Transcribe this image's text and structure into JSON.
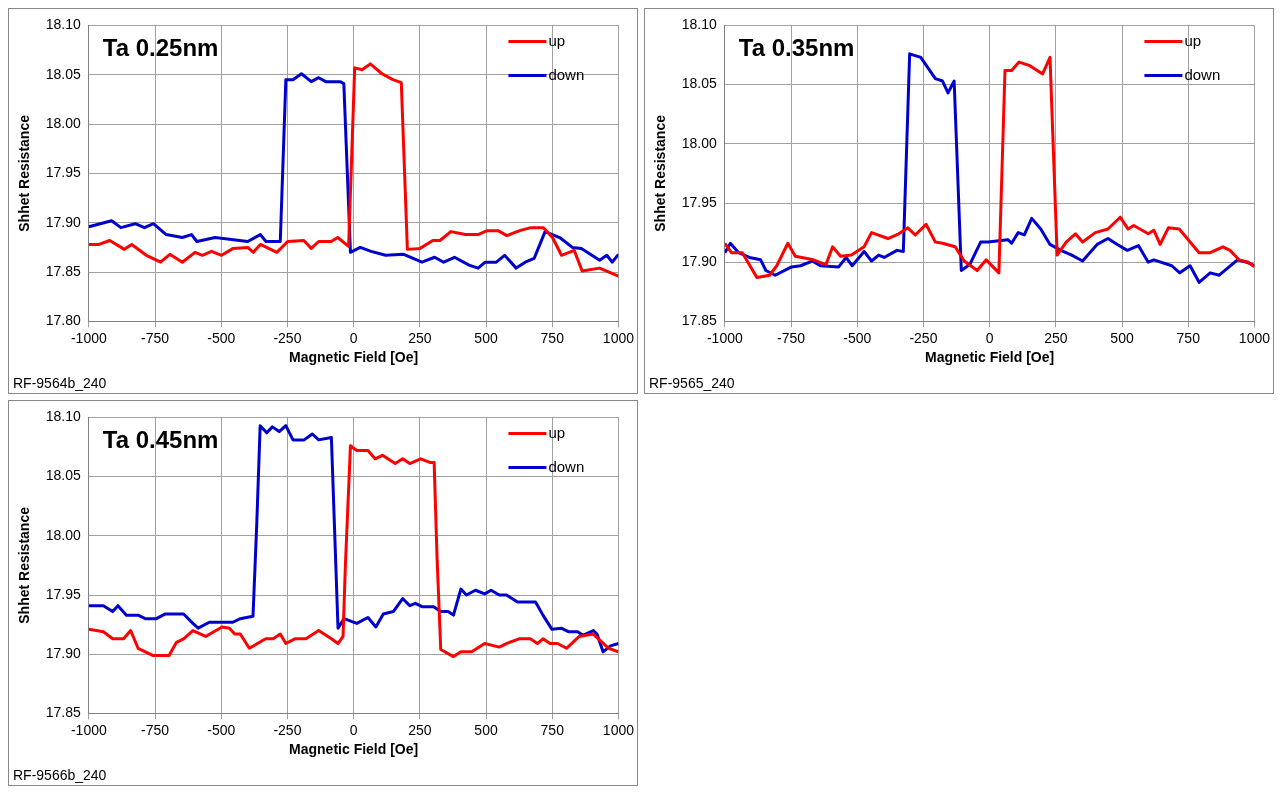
{
  "chart_data": [
    {
      "type": "line",
      "title": "Ta 0.25nm",
      "xlabel": "Magnetic Field [Oe]",
      "ylabel": "Shhet Resistance",
      "xlim": [
        -1000,
        1000
      ],
      "xticks": [
        -1000,
        -750,
        -500,
        -250,
        0,
        250,
        500,
        750,
        1000
      ],
      "ylim": [
        17.8,
        18.1
      ],
      "yticks": [
        {
          "value": 17.8,
          "label": "17.80"
        },
        {
          "value": 17.85,
          "label": "17.85"
        },
        {
          "value": 17.9,
          "label": "17.90"
        },
        {
          "value": 17.95,
          "label": "17.95"
        },
        {
          "value": 18.0,
          "label": "18.00"
        },
        {
          "value": 18.05,
          "label": "18.05"
        },
        {
          "value": 18.1,
          "label": "18.10"
        }
      ],
      "grid": true,
      "legend": "top right",
      "marker": "none",
      "annotations": [
        "RF-9564b_240"
      ],
      "series": [
        {
          "name": "up",
          "color": "#ff0000",
          "x": [
            -1000,
            -962,
            -921,
            -866,
            -838,
            -783,
            -729,
            -694,
            -647,
            -599,
            -571,
            -537,
            -499,
            -455,
            -400,
            -379,
            -352,
            -290,
            -249,
            -188,
            -160,
            -132,
            -85,
            -60,
            -19,
            4,
            32,
            63,
            107,
            148,
            180,
            203,
            251,
            299,
            326,
            367,
            422,
            470,
            504,
            545,
            579,
            627,
            669,
            717,
            751,
            785,
            833,
            863,
            929,
            1000
          ],
          "values": [
            17.878,
            17.878,
            17.882,
            17.873,
            17.878,
            17.867,
            17.86,
            17.868,
            17.86,
            17.87,
            17.867,
            17.871,
            17.867,
            17.874,
            17.875,
            17.87,
            17.878,
            17.87,
            17.881,
            17.882,
            17.874,
            17.881,
            17.881,
            17.885,
            17.876,
            18.057,
            18.055,
            18.061,
            18.051,
            18.045,
            18.042,
            17.873,
            17.874,
            17.882,
            17.882,
            17.891,
            17.888,
            17.888,
            17.892,
            17.892,
            17.887,
            17.892,
            17.895,
            17.895,
            17.885,
            17.867,
            17.872,
            17.851,
            17.854,
            17.846
          ]
        },
        {
          "name": "down",
          "color": "#0000cc",
          "x": [
            -1000,
            -914,
            -879,
            -825,
            -790,
            -756,
            -708,
            -647,
            -612,
            -592,
            -523,
            -400,
            -352,
            -331,
            -277,
            -256,
            -229,
            -197,
            -160,
            -132,
            -105,
            -51,
            -37,
            -12,
            25,
            66,
            121,
            189,
            258,
            306,
            340,
            381,
            436,
            470,
            497,
            539,
            570,
            614,
            648,
            682,
            723,
            778,
            826,
            860,
            929,
            956,
            977,
            1000
          ],
          "values": [
            17.896,
            17.902,
            17.895,
            17.899,
            17.895,
            17.899,
            17.888,
            17.885,
            17.888,
            17.881,
            17.885,
            17.881,
            17.888,
            17.881,
            17.881,
            18.045,
            18.045,
            18.051,
            18.043,
            18.047,
            18.043,
            18.043,
            18.041,
            17.87,
            17.875,
            17.871,
            17.867,
            17.868,
            17.86,
            17.865,
            17.86,
            17.865,
            17.857,
            17.854,
            17.86,
            17.86,
            17.867,
            17.854,
            17.86,
            17.864,
            17.891,
            17.885,
            17.875,
            17.874,
            17.862,
            17.867,
            17.86,
            17.868
          ]
        }
      ]
    },
    {
      "type": "line",
      "title": "Ta 0.35nm",
      "xlabel": "Magnetic Field [Oe]",
      "ylabel": "Shhet Resistance",
      "xlim": [
        -1000,
        1000
      ],
      "xticks": [
        -1000,
        -750,
        -500,
        -250,
        0,
        250,
        500,
        750,
        1000
      ],
      "ylim": [
        17.85,
        18.1
      ],
      "yticks": [
        {
          "value": 17.85,
          "label": "17.85"
        },
        {
          "value": 17.9,
          "label": "17.90"
        },
        {
          "value": 17.95,
          "label": "17.95"
        },
        {
          "value": 18.0,
          "label": "18.00"
        },
        {
          "value": 18.05,
          "label": "18.05"
        },
        {
          "value": 18.1,
          "label": "18.10"
        }
      ],
      "grid": true,
      "legend": "top right",
      "marker": "none",
      "annotations": [
        "RF-9565_240"
      ],
      "series": [
        {
          "name": "up",
          "color": "#ff0000",
          "x": [
            -1000,
            -975,
            -934,
            -879,
            -831,
            -804,
            -762,
            -734,
            -666,
            -618,
            -593,
            -563,
            -522,
            -474,
            -446,
            -384,
            -343,
            -309,
            -281,
            -240,
            -205,
            -178,
            -130,
            -96,
            -47,
            -13,
            35,
            58,
            83,
            111,
            152,
            200,
            228,
            255,
            289,
            324,
            351,
            399,
            447,
            493,
            523,
            544,
            599,
            620,
            644,
            675,
            716,
            757,
            791,
            833,
            881,
            908,
            942,
            977,
            1000
          ],
          "values": [
            17.916,
            17.908,
            17.908,
            17.887,
            17.889,
            17.897,
            17.916,
            17.905,
            17.902,
            17.898,
            17.913,
            17.905,
            17.906,
            17.913,
            17.925,
            17.92,
            17.924,
            17.929,
            17.923,
            17.932,
            17.917,
            17.916,
            17.913,
            17.901,
            17.893,
            17.902,
            17.891,
            18.062,
            18.062,
            18.069,
            18.066,
            18.059,
            18.073,
            17.906,
            17.917,
            17.924,
            17.917,
            17.925,
            17.928,
            17.938,
            17.928,
            17.931,
            17.924,
            17.927,
            17.915,
            17.929,
            17.928,
            17.917,
            17.908,
            17.908,
            17.913,
            17.91,
            17.902,
            17.9,
            17.896
          ]
        },
        {
          "name": "down",
          "color": "#0000cc",
          "x": [
            -1000,
            -979,
            -948,
            -907,
            -865,
            -845,
            -810,
            -748,
            -714,
            -670,
            -639,
            -570,
            -542,
            -519,
            -474,
            -446,
            -419,
            -398,
            -350,
            -326,
            -302,
            -260,
            -205,
            -178,
            -157,
            -134,
            -107,
            -75,
            -34,
            -6,
            69,
            83,
            108,
            131,
            159,
            193,
            228,
            269,
            310,
            351,
            406,
            447,
            482,
            520,
            562,
            599,
            620,
            688,
            718,
            757,
            791,
            833,
            867,
            936,
            970,
            1000
          ],
          "values": [
            17.908,
            17.916,
            17.908,
            17.904,
            17.902,
            17.893,
            17.889,
            17.896,
            17.897,
            17.901,
            17.897,
            17.896,
            17.904,
            17.897,
            17.909,
            17.901,
            17.906,
            17.904,
            17.91,
            17.909,
            18.076,
            18.073,
            18.055,
            18.053,
            18.043,
            18.053,
            17.893,
            17.898,
            17.917,
            17.917,
            17.919,
            17.916,
            17.925,
            17.923,
            17.937,
            17.928,
            17.915,
            17.91,
            17.906,
            17.901,
            17.915,
            17.92,
            17.915,
            17.91,
            17.914,
            17.9,
            17.902,
            17.897,
            17.891,
            17.897,
            17.883,
            17.891,
            17.889,
            17.902,
            17.9,
            17.897
          ]
        }
      ]
    },
    {
      "type": "line",
      "title": "Ta 0.45nm",
      "xlabel": "Magnetic Field [Oe]",
      "ylabel": "Shhet Resistance",
      "xlim": [
        -1000,
        1000
      ],
      "xticks": [
        -1000,
        -750,
        -500,
        -250,
        0,
        250,
        500,
        750,
        1000
      ],
      "ylim": [
        17.85,
        18.1
      ],
      "yticks": [
        {
          "value": 17.85,
          "label": "17.85"
        },
        {
          "value": 17.9,
          "label": "17.90"
        },
        {
          "value": 17.95,
          "label": "17.95"
        },
        {
          "value": 18.0,
          "label": "18.00"
        },
        {
          "value": 18.05,
          "label": "18.05"
        },
        {
          "value": 18.1,
          "label": "18.10"
        }
      ],
      "grid": true,
      "legend": "top right",
      "marker": "none",
      "annotations": [
        "RF-9566b_240"
      ],
      "series": [
        {
          "name": "up",
          "color": "#ff0000",
          "x": [
            -1000,
            -945,
            -910,
            -869,
            -842,
            -814,
            -759,
            -697,
            -669,
            -642,
            -607,
            -559,
            -497,
            -469,
            -449,
            -428,
            -394,
            -332,
            -304,
            -277,
            -256,
            -222,
            -180,
            -132,
            -84,
            -59,
            -40,
            -31,
            -12,
            12,
            54,
            81,
            109,
            157,
            185,
            212,
            253,
            288,
            304,
            315,
            329,
            377,
            405,
            446,
            495,
            550,
            577,
            625,
            667,
            694,
            715,
            742,
            770,
            804,
            852,
            905,
            963,
            1000
          ],
          "values": [
            17.921,
            17.919,
            17.913,
            17.913,
            17.92,
            17.905,
            17.899,
            17.899,
            17.91,
            17.913,
            17.92,
            17.915,
            17.923,
            17.922,
            17.917,
            17.917,
            17.905,
            17.913,
            17.913,
            17.917,
            17.909,
            17.913,
            17.913,
            17.92,
            17.913,
            17.909,
            17.915,
            17.976,
            18.076,
            18.072,
            18.072,
            18.065,
            18.068,
            18.061,
            18.065,
            18.061,
            18.065,
            18.062,
            18.062,
            17.982,
            17.904,
            17.898,
            17.902,
            17.902,
            17.909,
            17.906,
            17.909,
            17.913,
            17.913,
            17.909,
            17.913,
            17.909,
            17.909,
            17.905,
            17.915,
            17.917,
            17.905,
            17.902
          ]
        },
        {
          "name": "down",
          "color": "#0000cc",
          "x": [
            -1000,
            -945,
            -910,
            -890,
            -858,
            -814,
            -787,
            -745,
            -711,
            -642,
            -607,
            -587,
            -545,
            -456,
            -428,
            -380,
            -366,
            -353,
            -328,
            -307,
            -281,
            -256,
            -229,
            -187,
            -156,
            -132,
            -84,
            -59,
            -36,
            12,
            54,
            84,
            112,
            150,
            185,
            212,
            233,
            260,
            302,
            329,
            357,
            377,
            405,
            426,
            460,
            495,
            519,
            550,
            577,
            619,
            687,
            715,
            749,
            784,
            811,
            846,
            866,
            905,
            919,
            942,
            970,
            1000
          ],
          "values": [
            17.941,
            17.941,
            17.936,
            17.941,
            17.933,
            17.933,
            17.93,
            17.93,
            17.934,
            17.934,
            17.926,
            17.922,
            17.927,
            17.927,
            17.93,
            17.932,
            18.009,
            18.093,
            18.087,
            18.092,
            18.088,
            18.093,
            18.081,
            18.081,
            18.086,
            18.081,
            18.083,
            17.922,
            17.93,
            17.926,
            17.931,
            17.923,
            17.934,
            17.936,
            17.947,
            17.941,
            17.943,
            17.94,
            17.94,
            17.936,
            17.936,
            17.933,
            17.955,
            17.95,
            17.954,
            17.951,
            17.954,
            17.95,
            17.95,
            17.944,
            17.944,
            17.933,
            17.921,
            17.922,
            17.919,
            17.919,
            17.916,
            17.92,
            17.917,
            17.902,
            17.907,
            17.909
          ]
        }
      ]
    }
  ]
}
